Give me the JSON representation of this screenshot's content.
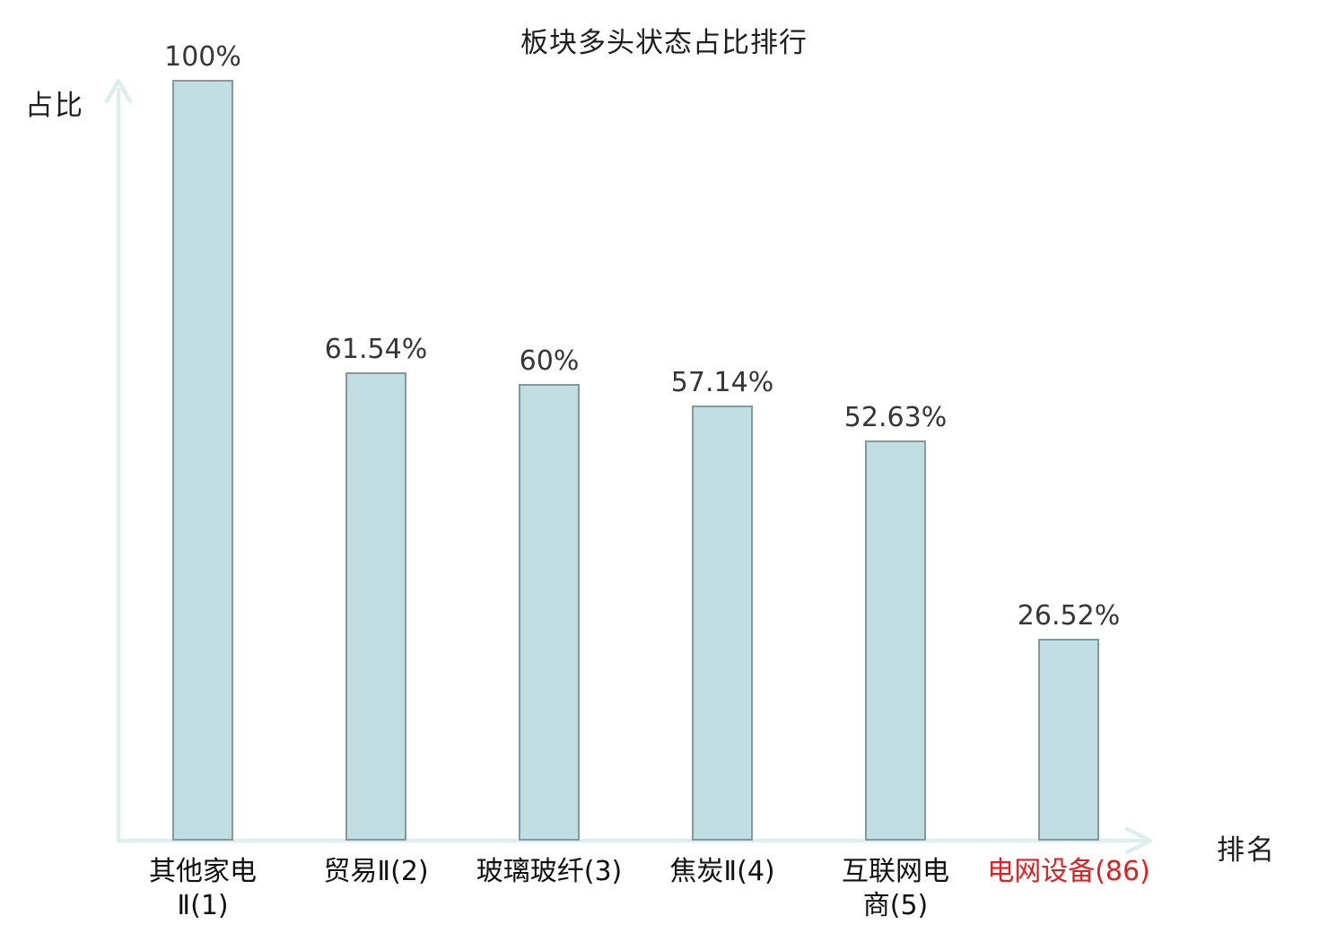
{
  "colors": {
    "bar_fill": "#c1dfe2",
    "bar_border": "#85989b",
    "axis": "#ddeeec",
    "title_text": "#1f1f1f",
    "value_text": "#363636",
    "category_text": "#111111",
    "highlight_text": "#e32020",
    "background": "#ffffff"
  },
  "chart_data": {
    "type": "bar",
    "title": "板块多头状态占比排行",
    "xlabel": "排名",
    "ylabel": "占比",
    "ylim": [
      0,
      100
    ],
    "grid": false,
    "categories": [
      "其他家电Ⅱ(1)",
      "贸易Ⅱ(2)",
      "玻璃玻纤(3)",
      "焦炭Ⅱ(4)",
      "互联网电商(5)",
      "电网设备(86)"
    ],
    "values": [
      100,
      61.54,
      60,
      57.14,
      52.63,
      26.52
    ],
    "value_labels": [
      "100%",
      "61.54%",
      "60%",
      "57.14%",
      "52.63%",
      "26.52%"
    ],
    "category_lines": [
      [
        "其他家电",
        "Ⅱ(1)"
      ],
      [
        "贸易Ⅱ(2)"
      ],
      [
        "玻璃玻纤(3)"
      ],
      [
        "焦炭Ⅱ(4)"
      ],
      [
        "互联网电",
        "商(5)"
      ],
      [
        "电网设备(86)"
      ]
    ],
    "highlight_index": 5,
    "highlight_category": "电网设备(86)"
  }
}
